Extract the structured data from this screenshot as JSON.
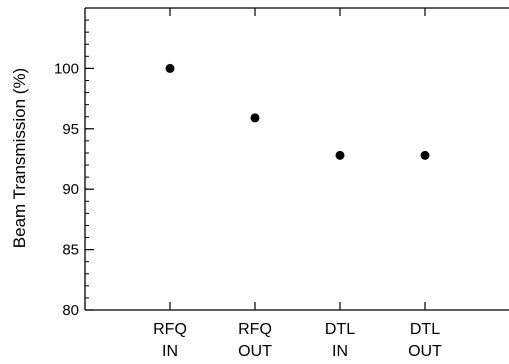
{
  "chart_data": {
    "type": "scatter",
    "title": "",
    "xlabel": "",
    "ylabel": "Beam Transmission (%)",
    "categories": [
      [
        "RFQ",
        "IN"
      ],
      [
        "RFQ",
        "OUT"
      ],
      [
        "DTL",
        "IN"
      ],
      [
        "DTL",
        "OUT"
      ]
    ],
    "values": [
      100.0,
      95.9,
      92.8,
      92.8
    ],
    "ylim": [
      80,
      105
    ],
    "y_ticks": [
      80,
      85,
      90,
      95,
      100
    ],
    "y_minor_step": 1,
    "grid": false,
    "legend": "none",
    "marker_color": "#000000"
  }
}
